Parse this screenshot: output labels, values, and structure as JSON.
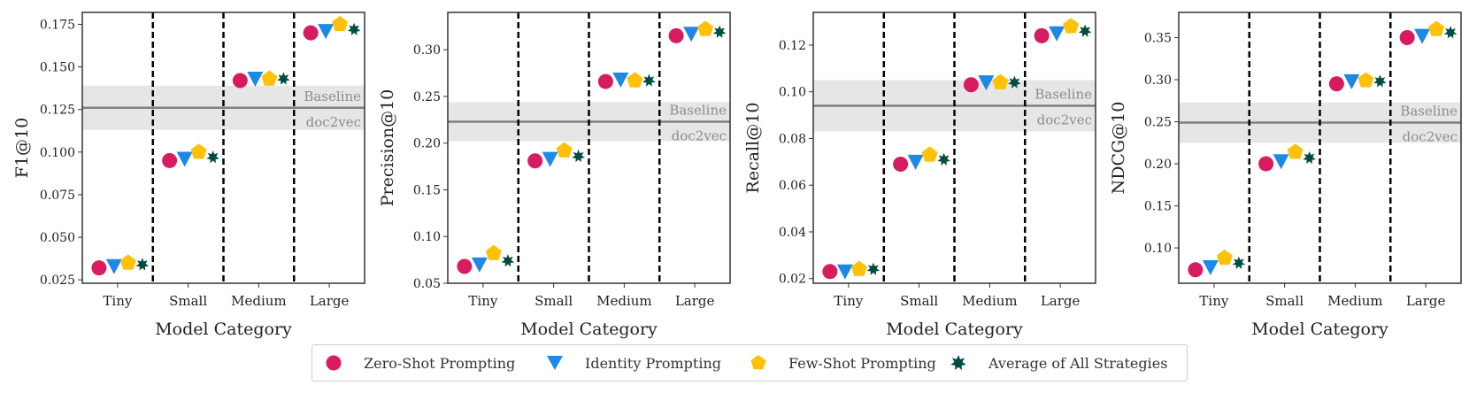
{
  "chart_data": [
    {
      "type": "scatter",
      "categories": [
        "Tiny",
        "Small",
        "Medium",
        "Large"
      ],
      "xlabel": "Model Category",
      "ylabel": "F1@10",
      "ylim": [
        0.023,
        0.182
      ],
      "yticks": [
        "0.025",
        "0.050",
        "0.075",
        "0.100",
        "0.125",
        "0.150",
        "0.175"
      ],
      "baseline": {
        "label": "Baseline",
        "sublabel": "doc2vec",
        "value": 0.126,
        "band": [
          0.113,
          0.139
        ]
      },
      "series": [
        {
          "name": "Zero-Shot Prompting",
          "values": [
            0.032,
            0.095,
            0.142,
            0.17
          ]
        },
        {
          "name": "Identity Prompting",
          "values": [
            0.033,
            0.096,
            0.143,
            0.171
          ]
        },
        {
          "name": "Few-Shot Prompting",
          "values": [
            0.035,
            0.1,
            0.143,
            0.175
          ]
        },
        {
          "name": "Average of All Strategies",
          "values": [
            0.034,
            0.097,
            0.143,
            0.172
          ]
        }
      ]
    },
    {
      "type": "scatter",
      "categories": [
        "Tiny",
        "Small",
        "Medium",
        "Large"
      ],
      "xlabel": "Model Category",
      "ylabel": "Precision@10",
      "ylim": [
        0.05,
        0.34
      ],
      "yticks": [
        "0.05",
        "0.10",
        "0.15",
        "0.20",
        "0.25",
        "0.30"
      ],
      "baseline": {
        "label": "Baseline",
        "sublabel": "doc2vec",
        "value": 0.223,
        "band": [
          0.202,
          0.244
        ]
      },
      "series": [
        {
          "name": "Zero-Shot Prompting",
          "values": [
            0.068,
            0.181,
            0.266,
            0.315
          ]
        },
        {
          "name": "Identity Prompting",
          "values": [
            0.07,
            0.183,
            0.268,
            0.317
          ]
        },
        {
          "name": "Few-Shot Prompting",
          "values": [
            0.082,
            0.192,
            0.267,
            0.322
          ]
        },
        {
          "name": "Average of All Strategies",
          "values": [
            0.074,
            0.186,
            0.267,
            0.319
          ]
        }
      ]
    },
    {
      "type": "scatter",
      "categories": [
        "Tiny",
        "Small",
        "Medium",
        "Large"
      ],
      "xlabel": "Model Category",
      "ylabel": "Recall@10",
      "ylim": [
        0.018,
        0.134
      ],
      "yticks": [
        "0.02",
        "0.04",
        "0.06",
        "0.08",
        "0.10",
        "0.12"
      ],
      "baseline": {
        "label": "Baseline",
        "sublabel": "doc2vec",
        "value": 0.094,
        "band": [
          0.083,
          0.105
        ]
      },
      "series": [
        {
          "name": "Zero-Shot Prompting",
          "values": [
            0.023,
            0.069,
            0.103,
            0.124
          ]
        },
        {
          "name": "Identity Prompting",
          "values": [
            0.023,
            0.07,
            0.104,
            0.125
          ]
        },
        {
          "name": "Few-Shot Prompting",
          "values": [
            0.024,
            0.073,
            0.104,
            0.128
          ]
        },
        {
          "name": "Average of All Strategies",
          "values": [
            0.024,
            0.071,
            0.104,
            0.126
          ]
        }
      ]
    },
    {
      "type": "scatter",
      "categories": [
        "Tiny",
        "Small",
        "Medium",
        "Large"
      ],
      "xlabel": "Model Category",
      "ylabel": "NDCG@10",
      "ylim": [
        0.058,
        0.38
      ],
      "yticks": [
        "0.10",
        "0.15",
        "0.20",
        "0.25",
        "0.30",
        "0.35"
      ],
      "baseline": {
        "label": "Baseline",
        "sublabel": "doc2vec",
        "value": 0.249,
        "band": [
          0.225,
          0.273
        ]
      },
      "series": [
        {
          "name": "Zero-Shot Prompting",
          "values": [
            0.074,
            0.2,
            0.295,
            0.35
          ]
        },
        {
          "name": "Identity Prompting",
          "values": [
            0.077,
            0.203,
            0.298,
            0.352
          ]
        },
        {
          "name": "Few-Shot Prompting",
          "values": [
            0.088,
            0.214,
            0.299,
            0.36
          ]
        },
        {
          "name": "Average of All Strategies",
          "values": [
            0.082,
            0.207,
            0.298,
            0.356
          ]
        }
      ]
    }
  ],
  "legend": {
    "items": [
      {
        "label": "Zero-Shot Prompting",
        "marker": "circle-icon",
        "color": "#D81B60"
      },
      {
        "label": "Identity Prompting",
        "marker": "triangle-down-icon",
        "color": "#1E88E5"
      },
      {
        "label": "Few-Shot Prompting",
        "marker": "pentagon-icon",
        "color": "#FFC107"
      },
      {
        "label": "Average of All Strategies",
        "marker": "heptagram-icon",
        "color": "#004D40"
      }
    ]
  },
  "colors": {
    "baseline_line": "#808080",
    "baseline_band": "#e6e6e6",
    "divider": "#000000"
  }
}
